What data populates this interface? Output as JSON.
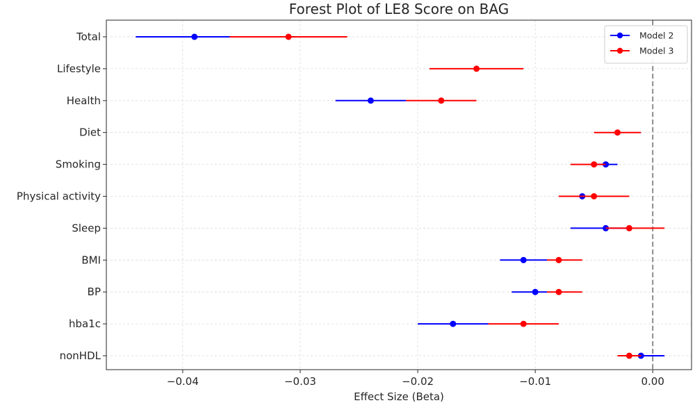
{
  "chart_data": {
    "type": "forest",
    "title": "Forest Plot of LE8 Score on BAG",
    "xlabel": "Effect Size (Beta)",
    "ylabel": "",
    "xlim": [
      -0.0465,
      0.0033
    ],
    "xticks": [
      -0.04,
      -0.03,
      -0.02,
      -0.01,
      0.0
    ],
    "xtick_labels": [
      "−0.04",
      "−0.03",
      "−0.02",
      "−0.01",
      "0.00"
    ],
    "reference_line": 0.0,
    "grid": true,
    "legend_position": "top-right",
    "categories": [
      "Total",
      "Lifestyle",
      "Health",
      "Diet",
      "Smoking",
      "Physical activity",
      "Sleep",
      "BMI",
      "BP",
      "hba1c",
      "nonHDL"
    ],
    "series": [
      {
        "name": "Model 2",
        "color": "#0000ff",
        "points": [
          {
            "category": "Total",
            "estimate": -0.039,
            "lower": -0.044,
            "upper": -0.036
          },
          {
            "category": "Health",
            "estimate": -0.024,
            "lower": -0.027,
            "upper": -0.021
          },
          {
            "category": "Smoking",
            "estimate": -0.004,
            "lower": -0.005,
            "upper": -0.003
          },
          {
            "category": "Physical activity",
            "estimate": -0.006,
            "lower": -0.008,
            "upper": -0.005
          },
          {
            "category": "Sleep",
            "estimate": -0.004,
            "lower": -0.007,
            "upper": -0.002
          },
          {
            "category": "BMI",
            "estimate": -0.011,
            "lower": -0.013,
            "upper": -0.009
          },
          {
            "category": "BP",
            "estimate": -0.01,
            "lower": -0.012,
            "upper": -0.009
          },
          {
            "category": "hba1c",
            "estimate": -0.017,
            "lower": -0.02,
            "upper": -0.014
          },
          {
            "category": "nonHDL",
            "estimate": -0.001,
            "lower": -0.002,
            "upper": 0.001
          }
        ]
      },
      {
        "name": "Model 3",
        "color": "#ff0000",
        "points": [
          {
            "category": "Total",
            "estimate": -0.031,
            "lower": -0.036,
            "upper": -0.026
          },
          {
            "category": "Lifestyle",
            "estimate": -0.015,
            "lower": -0.019,
            "upper": -0.011
          },
          {
            "category": "Health",
            "estimate": -0.018,
            "lower": -0.021,
            "upper": -0.015
          },
          {
            "category": "Diet",
            "estimate": -0.003,
            "lower": -0.005,
            "upper": -0.001
          },
          {
            "category": "Smoking",
            "estimate": -0.005,
            "lower": -0.007,
            "upper": -0.004
          },
          {
            "category": "Physical activity",
            "estimate": -0.005,
            "lower": -0.008,
            "upper": -0.002
          },
          {
            "category": "Sleep",
            "estimate": -0.002,
            "lower": -0.004,
            "upper": 0.001
          },
          {
            "category": "BMI",
            "estimate": -0.008,
            "lower": -0.009,
            "upper": -0.006
          },
          {
            "category": "BP",
            "estimate": -0.008,
            "lower": -0.009,
            "upper": -0.006
          },
          {
            "category": "hba1c",
            "estimate": -0.011,
            "lower": -0.014,
            "upper": -0.008
          },
          {
            "category": "nonHDL",
            "estimate": -0.002,
            "lower": -0.003,
            "upper": -0.001
          }
        ]
      }
    ]
  }
}
